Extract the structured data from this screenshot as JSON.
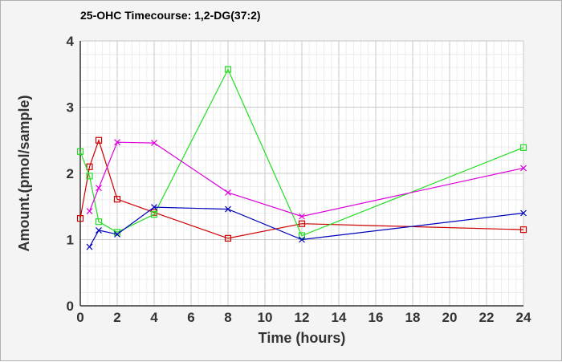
{
  "chart_data": {
    "type": "line",
    "title": "25-OHC Timecourse: 1,2-DG(37:2)",
    "xlabel": "Time (hours)",
    "ylabel": "Amount.(pmol/sample)",
    "xlim": [
      0,
      24
    ],
    "ylim": [
      0,
      4
    ],
    "xticks": [
      0,
      2,
      4,
      6,
      8,
      10,
      12,
      14,
      16,
      18,
      20,
      22,
      24
    ],
    "yticks": [
      0,
      1,
      2,
      3,
      4
    ],
    "grid": true,
    "series": [
      {
        "color": "#cc0000",
        "marker": "square",
        "x": [
          0,
          0.5,
          1,
          2,
          4,
          8,
          12,
          24
        ],
        "y": [
          1.32,
          2.1,
          2.5,
          1.61,
          1.41,
          1.02,
          1.24,
          1.15
        ]
      },
      {
        "color": "#22dd22",
        "marker": "square",
        "x": [
          0,
          0.5,
          1,
          2,
          4,
          8,
          12,
          24
        ],
        "y": [
          2.33,
          1.96,
          1.27,
          1.11,
          1.38,
          3.57,
          1.06,
          2.39
        ]
      },
      {
        "color": "#0000bb",
        "marker": "x",
        "x": [
          0.5,
          1,
          2,
          4,
          8,
          12,
          24
        ],
        "y": [
          0.89,
          1.14,
          1.08,
          1.49,
          1.46,
          1.0,
          1.4
        ]
      },
      {
        "color": "#dd00dd",
        "marker": "x",
        "x": [
          0.5,
          1,
          2,
          4,
          8,
          12,
          24
        ],
        "y": [
          1.43,
          1.78,
          2.47,
          2.46,
          1.71,
          1.35,
          2.08
        ]
      }
    ]
  }
}
